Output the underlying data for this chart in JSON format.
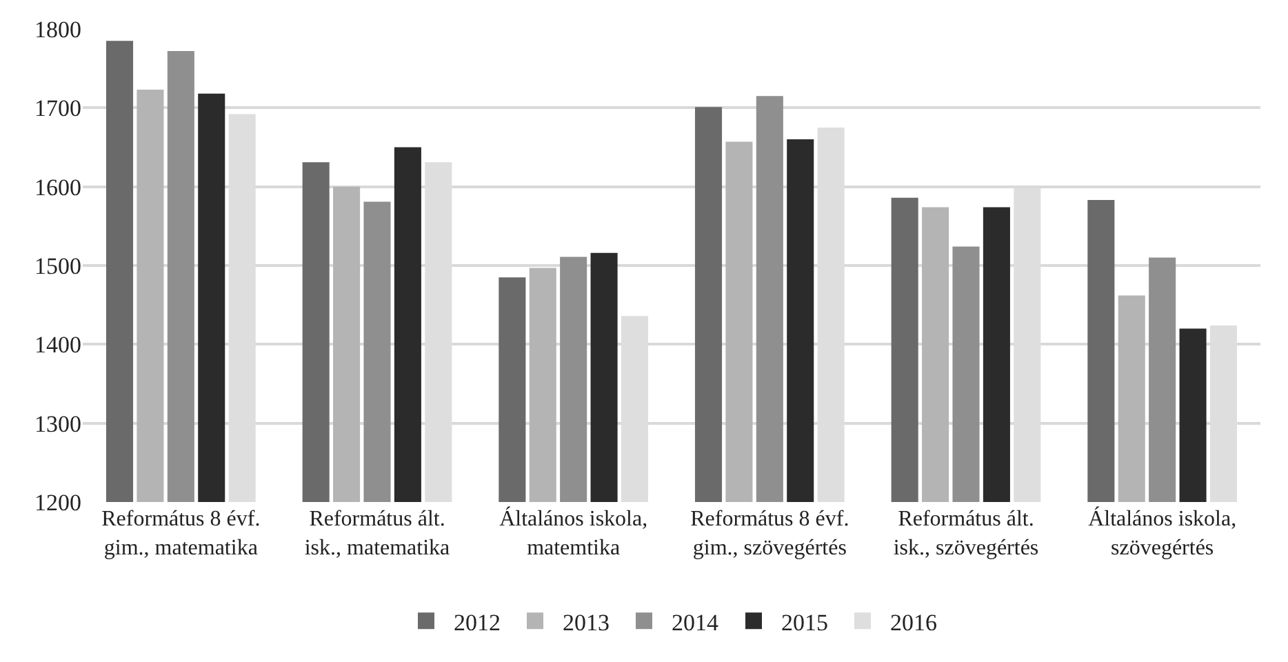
{
  "chart_data": {
    "type": "bar",
    "categories": [
      "Református 8 évf.\ngim., matematika",
      "Református ált.\nisk., matematika",
      "Általános iskola,\nmatemtika",
      "Református 8 évf.\ngim., szövegértés",
      "Református ált.\nisk., szövegértés",
      "Általános iskola,\nszövegértés"
    ],
    "series": [
      {
        "name": "2012",
        "color": "#6a6a6a",
        "values": [
          1785,
          1631,
          1485,
          1701,
          1586,
          1583
        ]
      },
      {
        "name": "2013",
        "color": "#b4b4b4",
        "values": [
          1723,
          1600,
          1497,
          1657,
          1574,
          1462
        ]
      },
      {
        "name": "2014",
        "color": "#8f8f8f",
        "values": [
          1772,
          1581,
          1511,
          1715,
          1524,
          1510
        ]
      },
      {
        "name": "2015",
        "color": "#2b2b2b",
        "values": [
          1718,
          1650,
          1516,
          1660,
          1574,
          1420
        ]
      },
      {
        "name": "2016",
        "color": "#dedede",
        "values": [
          1692,
          1631,
          1436,
          1675,
          1598,
          1424
        ]
      }
    ],
    "ylim": [
      1200,
      1800
    ],
    "yticks": [
      1200,
      1300,
      1400,
      1500,
      1600,
      1700,
      1800
    ],
    "grid": "y",
    "legend": "bottom"
  }
}
